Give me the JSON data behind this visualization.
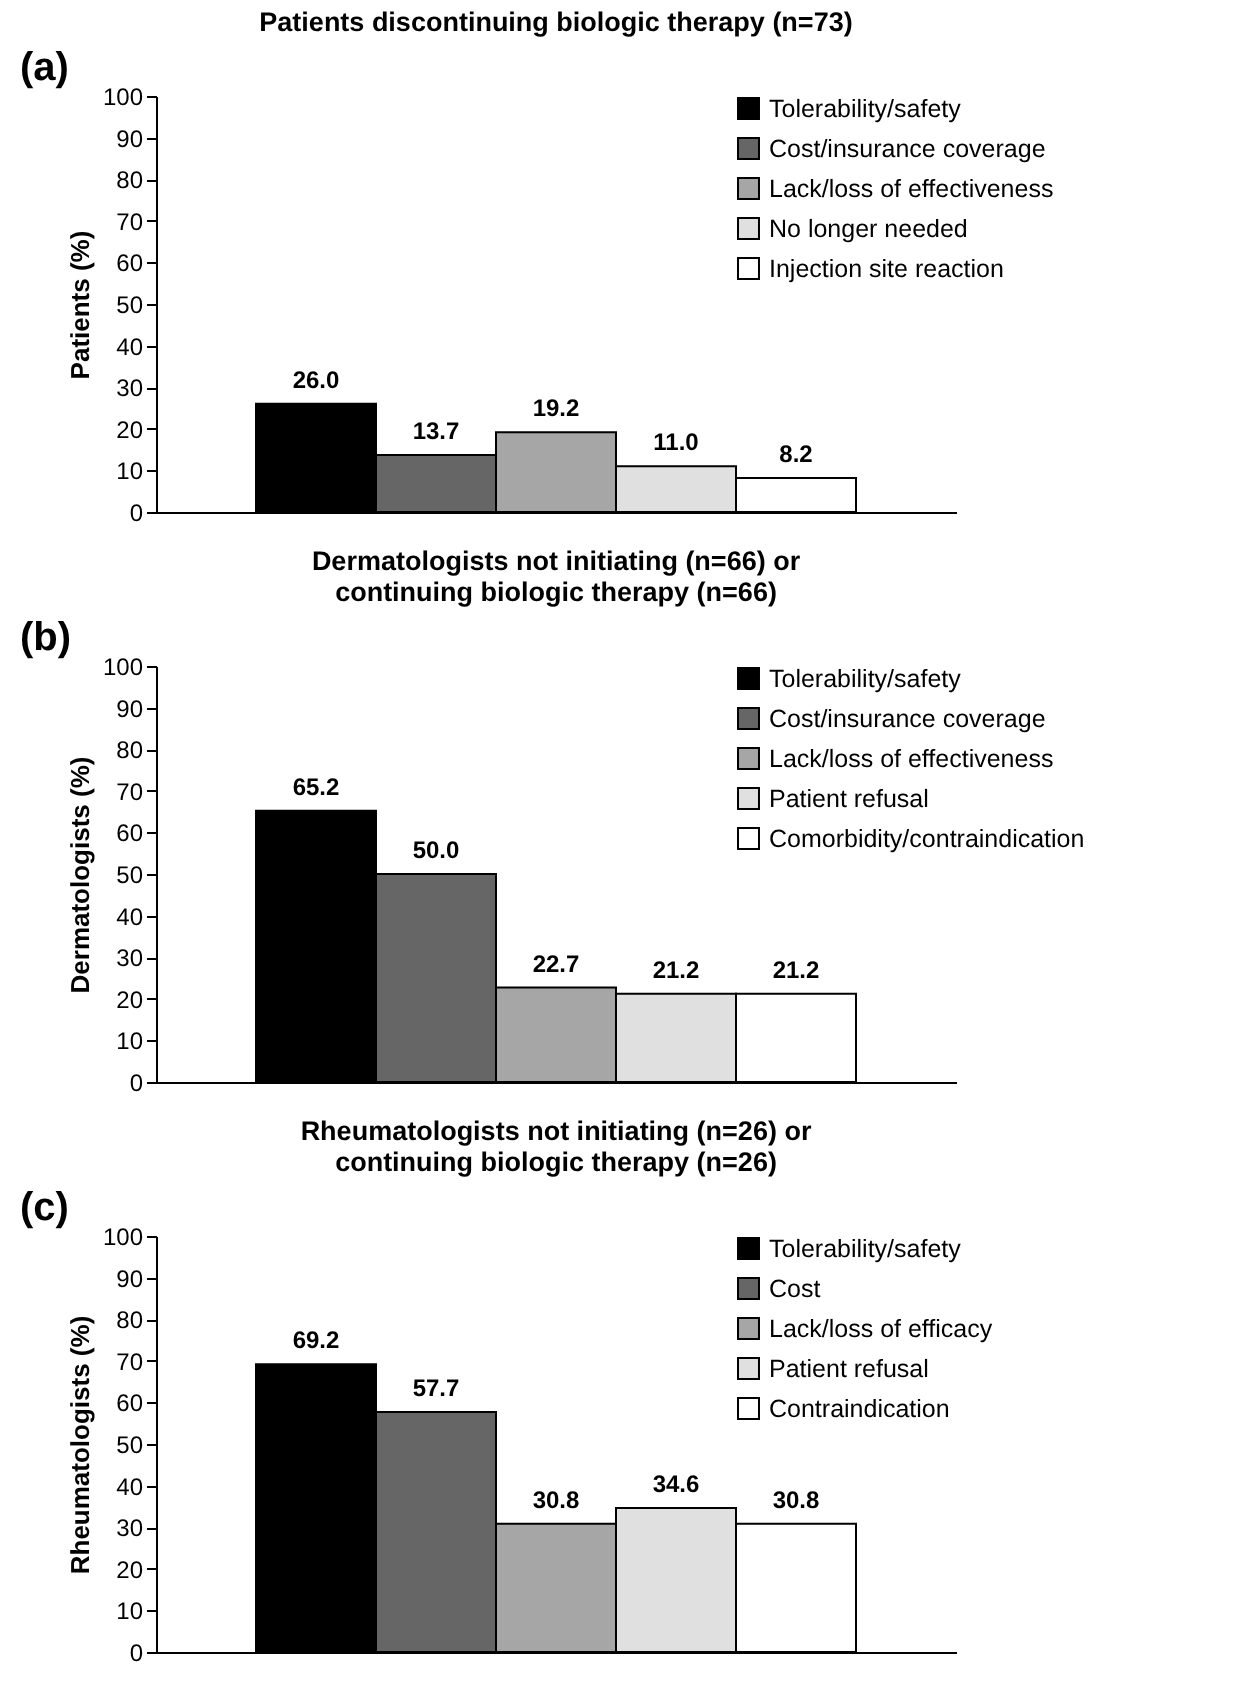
{
  "chart_data": [
    {
      "type": "bar",
      "title": "Patients discontinuing biologic therapy (n=73)",
      "ylabel": "Patients (%)",
      "annotations": [
        "(a)"
      ],
      "categories": [
        null
      ],
      "series": [
        {
          "name": "Tolerability/safety",
          "color": "#000000",
          "values": [
            26.0
          ],
          "value_labels": [
            "26.0"
          ]
        },
        {
          "name": "Cost/insurance coverage",
          "color": "#666666",
          "values": [
            13.7
          ],
          "value_labels": [
            "13.7"
          ]
        },
        {
          "name": "Lack/loss of effectiveness",
          "color": "#a6a6a6",
          "values": [
            19.2
          ],
          "value_labels": [
            "19.2"
          ]
        },
        {
          "name": "No longer needed",
          "color": "#e0e0e0",
          "values": [
            11.0
          ],
          "value_labels": [
            "11.0"
          ]
        },
        {
          "name": "Injection site reaction",
          "color": "#ffffff",
          "values": [
            8.2
          ],
          "value_labels": [
            "8.2"
          ]
        }
      ],
      "ylim": [
        0,
        100
      ],
      "yticks": [
        0,
        10,
        20,
        30,
        40,
        50,
        60,
        70,
        80,
        90,
        100
      ],
      "legend": "top right"
    },
    {
      "type": "bar",
      "title": "Dermatologists not initiating (n=66) or continuing biologic therapy (n=66)",
      "ylabel": "Dermatologists (%)",
      "annotations": [
        "(b)"
      ],
      "categories": [
        null
      ],
      "series": [
        {
          "name": "Tolerability/safety",
          "color": "#000000",
          "values": [
            65.2
          ],
          "value_labels": [
            "65.2"
          ]
        },
        {
          "name": "Cost/insurance coverage",
          "color": "#666666",
          "values": [
            50.0
          ],
          "value_labels": [
            "50.0"
          ]
        },
        {
          "name": "Lack/loss of effectiveness",
          "color": "#a6a6a6",
          "values": [
            22.7
          ],
          "value_labels": [
            "22.7"
          ]
        },
        {
          "name": "Patient refusal",
          "color": "#e0e0e0",
          "values": [
            21.2
          ],
          "value_labels": [
            "21.2"
          ]
        },
        {
          "name": "Comorbidity/contraindication",
          "color": "#ffffff",
          "values": [
            21.2
          ],
          "value_labels": [
            "21.2"
          ]
        }
      ],
      "ylim": [
        0,
        100
      ],
      "yticks": [
        0,
        10,
        20,
        30,
        40,
        50,
        60,
        70,
        80,
        90,
        100
      ],
      "legend": "top right"
    },
    {
      "type": "bar",
      "title": "Rheumatologists not initiating (n=26) or continuing biologic therapy (n=26)",
      "ylabel": "Rheumatologists (%)",
      "annotations": [
        "(c)"
      ],
      "categories": [
        null
      ],
      "series": [
        {
          "name": "Tolerability/safety",
          "color": "#000000",
          "values": [
            69.2
          ],
          "value_labels": [
            "69.2"
          ]
        },
        {
          "name": "Cost",
          "color": "#666666",
          "values": [
            57.7
          ],
          "value_labels": [
            "57.7"
          ]
        },
        {
          "name": "Lack/loss of efficacy",
          "color": "#a6a6a6",
          "values": [
            30.8
          ],
          "value_labels": [
            "30.8"
          ]
        },
        {
          "name": "Patient refusal",
          "color": "#e0e0e0",
          "values": [
            34.6
          ],
          "value_labels": [
            "34.6"
          ]
        },
        {
          "name": "Contraindication",
          "color": "#ffffff",
          "values": [
            30.8
          ],
          "value_labels": [
            "30.8"
          ]
        }
      ],
      "ylim": [
        0,
        100
      ],
      "yticks": [
        0,
        10,
        20,
        30,
        40,
        50,
        60,
        70,
        80,
        90,
        100
      ],
      "legend": "top right"
    }
  ]
}
